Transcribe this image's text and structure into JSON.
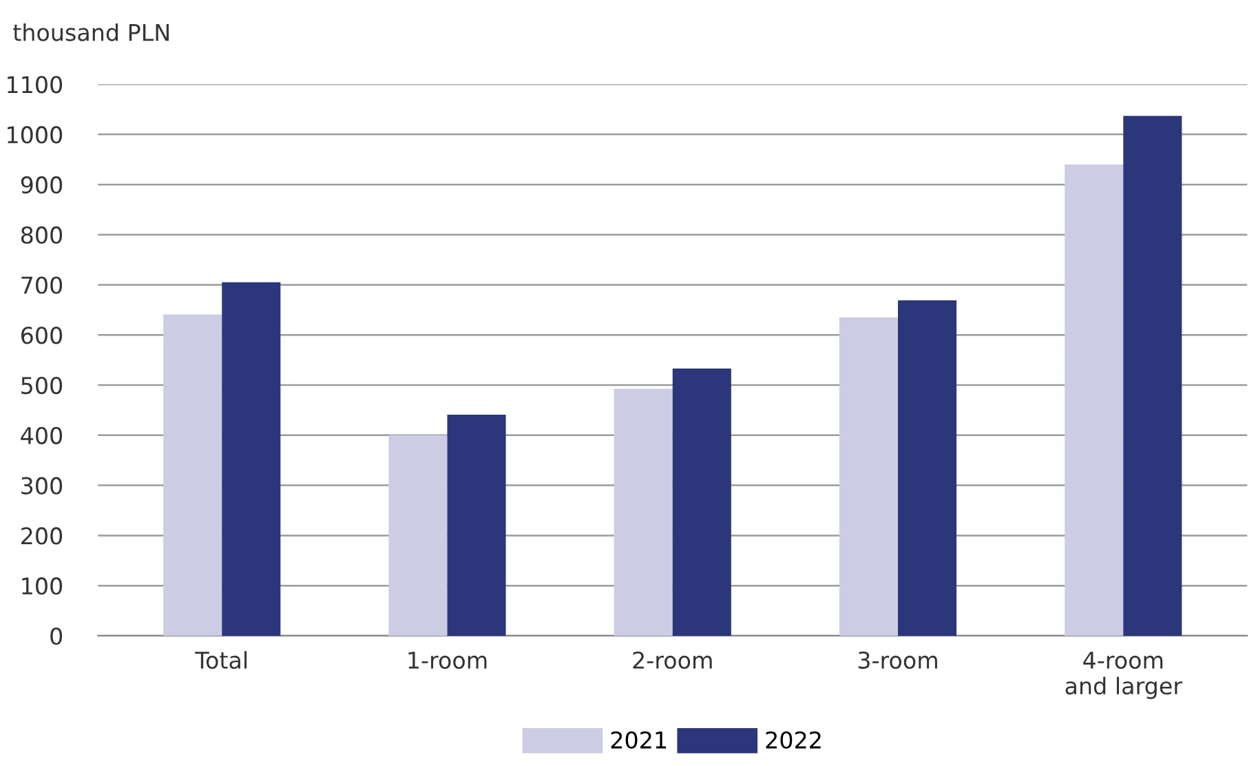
{
  "chart_data": {
    "type": "bar",
    "ylabel": "thousand PLN",
    "categories": [
      "Total",
      "1-room",
      "2-room",
      "3-room",
      "4-room\nand larger"
    ],
    "series": [
      {
        "name": "2021",
        "color": "#cccde4",
        "values": [
          641,
          400,
          493,
          635,
          940
        ]
      },
      {
        "name": "2022",
        "color": "#2b377a",
        "values": [
          705,
          441,
          533,
          669,
          1037
        ]
      }
    ],
    "ylim": [
      0,
      1100
    ],
    "yticks": [
      0,
      100,
      200,
      300,
      400,
      500,
      600,
      700,
      800,
      900,
      1000,
      1100
    ],
    "grid": "y",
    "legend": "bottom"
  }
}
